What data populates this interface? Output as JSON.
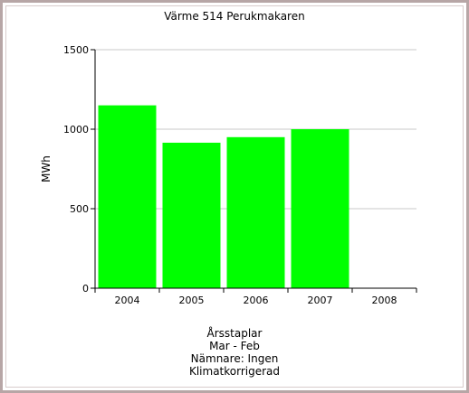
{
  "chart_data": {
    "type": "bar",
    "title": "Värme 514 Perukmakaren",
    "ylabel": "MWh",
    "xlabel": "",
    "categories": [
      "2004",
      "2005",
      "2006",
      "2007",
      "2008"
    ],
    "values": [
      1150,
      915,
      950,
      1000,
      null
    ],
    "ylim": [
      0,
      1500
    ],
    "yticks": [
      0,
      500,
      1000,
      1500
    ],
    "grid": true,
    "bar_color": "#00ff00",
    "grid_color": "#c8c8c8",
    "footer": [
      "Årsstaplar",
      "Mar - Feb",
      "Nämnare: Ingen",
      "Klimatkorrigerad"
    ]
  }
}
